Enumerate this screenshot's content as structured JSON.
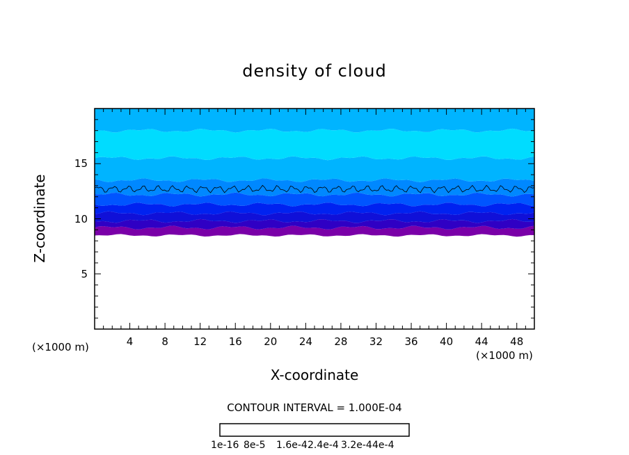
{
  "chart_data": {
    "type": "heatmap",
    "title": "density of cloud",
    "xlabel": "X-coordinate",
    "ylabel": "Z-coordinate",
    "x_unit": "(×1000 m)",
    "y_unit": "(×1000 m)",
    "xlim": [
      0,
      50
    ],
    "ylim": [
      0,
      20
    ],
    "x_ticks": [
      "4",
      "8",
      "12",
      "16",
      "20",
      "24",
      "28",
      "32",
      "36",
      "40",
      "44",
      "48"
    ],
    "y_ticks": [
      "5",
      "10",
      "15"
    ],
    "contour_interval_text": "CONTOUR INTERVAL = 1.000E-04",
    "colorbar": {
      "labels": [
        "1e-16",
        "8e-5",
        "1.6e-4",
        "2.4e-4",
        "3.2e-4",
        "4e-4"
      ],
      "colors": [
        "#7a00a8",
        "#4e00b0",
        "#2f00c4",
        "#1010d8",
        "#0022f0",
        "#0055ff",
        "#0088ff",
        "#00b4ff",
        "#00dcff",
        "#00f0e6",
        "#00f0b4",
        "#00f082",
        "#00f050",
        "#28f028",
        "#64f000",
        "#a0f000",
        "#d2f000",
        "#f0e600",
        "#ffc800",
        "#ff9600",
        "#ff6400",
        "#ff3c28",
        "#ff5a5a",
        "#ff7878",
        "#ff9a9a"
      ]
    },
    "cloud_layer": {
      "base_z": 8.5,
      "top_z": 20,
      "bands": [
        {
          "z_from": 8.5,
          "z_to": 9.2,
          "color": "#7a00a8"
        },
        {
          "z_from": 9.2,
          "z_to": 9.8,
          "color": "#2f00c4"
        },
        {
          "z_from": 9.8,
          "z_to": 10.5,
          "color": "#1010d8"
        },
        {
          "z_from": 10.5,
          "z_to": 11.3,
          "color": "#0022f0"
        },
        {
          "z_from": 11.3,
          "z_to": 12.2,
          "color": "#0055ff"
        },
        {
          "z_from": 12.2,
          "z_to": 13.5,
          "color": "#0088ff"
        },
        {
          "z_from": 13.5,
          "z_to": 15.5,
          "color": "#00b4ff"
        },
        {
          "z_from": 15.5,
          "z_to": 18,
          "color": "#00dcff"
        },
        {
          "z_from": 18,
          "z_to": 20,
          "color": "#00b4ff"
        }
      ],
      "contour_line_z": 12.7
    }
  }
}
